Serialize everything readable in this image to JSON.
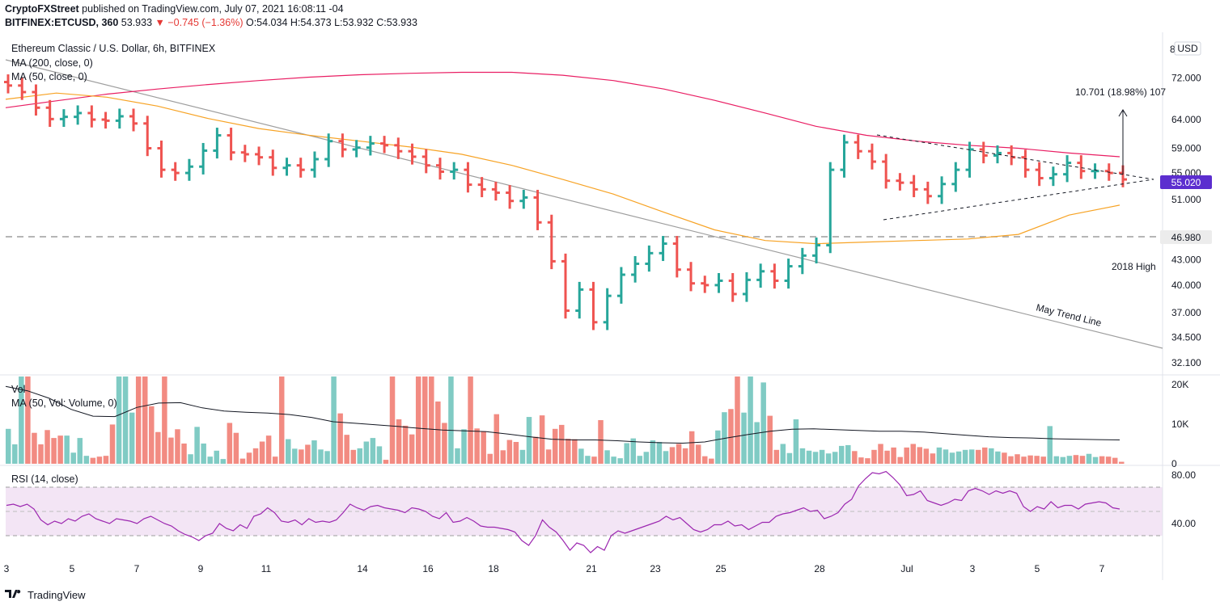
{
  "header": {
    "publisher": "CryptoFXStreet",
    "published_text": "published on TradingView.com, July 07, 2021 16:08:11 -04"
  },
  "quote": {
    "symbol": "BITFINEX:ETCUSD, 360",
    "last": "53.933",
    "change": "▼ −0.745 (−1.36%)",
    "ohlc": "O:54.034 H:54.373 L:53.932 C:53.933"
  },
  "legend": {
    "title": "Ethereum Classic / U.S. Dollar, 6h, BITFINEX",
    "ma200": "MA (200, close, 0)",
    "ma50": "MA (50, close, 0)",
    "vol": "Vol",
    "vol_ma": "MA (50, Vol: Volume, 0)",
    "rsi": "RSI (14, close)"
  },
  "price_axis": {
    "currency": "USD",
    "current_price_label": "55.020",
    "level_label": "46.980",
    "top_partial": "8"
  },
  "annotations": {
    "target": "10.701 (18.98%) 107",
    "level_name": "2018 High",
    "trend_line": "May Trend Line"
  },
  "footer": {
    "brand": "TradingView"
  },
  "colors": {
    "up": "#26a69a",
    "down": "#ef5350",
    "vol_up": "#80cbc4",
    "vol_down": "#f28b82",
    "ma200": "#e91e63",
    "ma50": "#f7a325",
    "rsi": "#9c27b0",
    "rsi_band": "#f3e5f5",
    "current_label_bg": "#5c2ecf"
  },
  "chart_data": [
    {
      "type": "ohlc",
      "title": "Ethereum Classic / U.S. Dollar, 6h, BITFINEX",
      "scale": "log",
      "y_ticks": [
        "72.000",
        "64.000",
        "59.000",
        "55.000",
        "51.000",
        "46.980",
        "43.000",
        "40.000",
        "37.000",
        "34.500",
        "32.100"
      ],
      "x_ticks": [
        "3",
        "5",
        "7",
        "9",
        "11",
        "14",
        "16",
        "18",
        "21",
        "23",
        "25",
        "28",
        "Jul",
        "3",
        "5",
        "7"
      ],
      "ylim": [
        31.0,
        82.0
      ],
      "series": [
        {
          "name": "Ethereum Classic / U.S. Dollar",
          "close_path": [
            70.5,
            69.2,
            66.2,
            64.1,
            64.5,
            65.2,
            64.0,
            63.8,
            64.6,
            63.3,
            59.0,
            55.5,
            55.0,
            56.0,
            58.6,
            61.2,
            58.3,
            58.0,
            57.5,
            55.8,
            56.2,
            55.5,
            57.2,
            60.2,
            58.8,
            59.1,
            59.8,
            59.5,
            58.5,
            57.6,
            56.2,
            55.2,
            55.5,
            53.2,
            52.5,
            52.0,
            50.8,
            51.3,
            47.8,
            42.8,
            37.2,
            39.5,
            36.0,
            38.8,
            41.2,
            42.5,
            43.8,
            45.0,
            41.8,
            40.2,
            40.0,
            40.5,
            39.0,
            40.6,
            41.6,
            40.5,
            42.2,
            43.5,
            44.8,
            55.5,
            60.0,
            58.5,
            56.8,
            53.8,
            53.5,
            52.5,
            51.5,
            53.3,
            55.5,
            58.8,
            57.8,
            58.2,
            57.5,
            55.5,
            54.2,
            54.8,
            56.6,
            55.3,
            55.3,
            55.0,
            54.0
          ]
        },
        {
          "name": "MA (200, close, 0)",
          "values": [
            66.2,
            67.5,
            68.8,
            69.8,
            70.7,
            71.5,
            72.2,
            72.7,
            73.0,
            73.2,
            73.2,
            72.6,
            71.5,
            69.8,
            67.6,
            65.2,
            62.8,
            61.2,
            60.2,
            59.5,
            59.0,
            58.2,
            57.6
          ]
        },
        {
          "name": "MA (50, close, 0)",
          "values": [
            67.8,
            69.0,
            68.2,
            66.5,
            64.2,
            62.4,
            61.2,
            60.2,
            59.2,
            58.0,
            56.2,
            54.0,
            51.8,
            49.2,
            46.8,
            45.4,
            45.0,
            45.2,
            45.4,
            45.6,
            46.2,
            48.8,
            50.2
          ]
        }
      ]
    },
    {
      "type": "bar",
      "title": "Vol",
      "y_ticks": [
        "20K",
        "10K",
        "0"
      ],
      "ylim": [
        0,
        22000
      ],
      "series": [
        {
          "name": "Vol",
          "values": [
            8800,
            4900,
            22000,
            22000,
            7800,
            4900,
            8500,
            6500,
            7100,
            7100,
            2800,
            6500,
            2000,
            1500,
            1800,
            2000,
            9900,
            22000,
            22000,
            12900,
            22000,
            22000,
            14500,
            8000,
            22000,
            6600,
            8700,
            5100,
            2400,
            9300,
            5100,
            1800,
            3300,
            1200,
            10300,
            7800,
            1300,
            2800,
            3900,
            5600,
            7100,
            1800,
            22000,
            6200,
            3800,
            3600,
            4800,
            5900,
            3600,
            3200,
            22000,
            12700,
            7300,
            3500,
            3900,
            5600,
            6500,
            4400,
            1000,
            22000,
            11200,
            9600,
            7400,
            22000,
            22000,
            22000,
            15700,
            10300,
            22000,
            3900,
            8700,
            22000,
            8900,
            8200,
            2500,
            12500,
            3400,
            6000,
            5500,
            3500,
            11800,
            6800,
            12200,
            3600,
            8800,
            9800,
            6300,
            6200,
            3800,
            2000,
            1800,
            11000,
            3400,
            1800,
            1400,
            5200,
            6400,
            2000,
            3000,
            5900,
            5500,
            3200,
            4200,
            5000,
            3900,
            8200,
            4800,
            1900,
            1300,
            8400,
            13000,
            13800,
            22000,
            12900,
            22000,
            10500,
            20500,
            12100,
            3500,
            5000,
            2700,
            11200,
            3900,
            3300,
            3000,
            3500,
            2600,
            3000,
            4500,
            4700,
            3200,
            1600,
            1400,
            3500,
            5000,
            3300,
            4100,
            1700,
            4100,
            5000,
            4200,
            3800,
            2600,
            4100,
            3600,
            2800,
            3100,
            3500,
            3600,
            3500,
            4100,
            3900,
            3100,
            2800,
            1900,
            2400,
            1800,
            2100,
            2000,
            1800,
            9500,
            1900,
            1700,
            2000,
            2200,
            2000,
            2500,
            1700,
            1900,
            1800,
            1500,
            500
          ]
        },
        {
          "name": "MA (50, Vol: Volume, 0)",
          "values": [
            19500,
            18400,
            16500,
            13700,
            12000,
            11900,
            14200,
            15300,
            15400,
            14100,
            13300,
            13000,
            12800,
            12400,
            11700,
            10600,
            10200,
            9800,
            9400,
            8900,
            8500,
            8300,
            8100,
            7500,
            6800,
            6200,
            6000,
            6000,
            5800,
            5500,
            5300,
            5200,
            5500,
            6500,
            7400,
            8200,
            8700,
            8800,
            8600,
            8400,
            8200,
            8200,
            8000,
            7600,
            7200,
            6800,
            6600,
            6500,
            6300,
            6200,
            6100,
            6000
          ]
        }
      ]
    },
    {
      "type": "line",
      "title": "RSI (14, close)",
      "y_ticks": [
        "80.00",
        "40.00"
      ],
      "ylim": [
        15,
        90
      ],
      "series": [
        {
          "name": "RSI (14, close)",
          "values": [
            55,
            56,
            54,
            56,
            52,
            43,
            39,
            42,
            40,
            44,
            42,
            46,
            48,
            44,
            42,
            40,
            44,
            43,
            42,
            40,
            44,
            46,
            43,
            40,
            38,
            34,
            31,
            29,
            26,
            30,
            32,
            40,
            36,
            34,
            39,
            36,
            46,
            48,
            53,
            49,
            42,
            41,
            43,
            39,
            44,
            41,
            42,
            41,
            43,
            49,
            56,
            53,
            51,
            54,
            55,
            53,
            52,
            51,
            49,
            53,
            52,
            50,
            46,
            44,
            49,
            41,
            42,
            45,
            42,
            38,
            37,
            37,
            36,
            35,
            33,
            26,
            22,
            30,
            43,
            37,
            33,
            26,
            18,
            24,
            22,
            16,
            21,
            18,
            30,
            34,
            32,
            34,
            36,
            38,
            40,
            42,
            46,
            43,
            45,
            40,
            35,
            33,
            35,
            39,
            39,
            42,
            38,
            39,
            35,
            38,
            41,
            41,
            46,
            48,
            49,
            51,
            53,
            50,
            51,
            44,
            46,
            49,
            56,
            60,
            71,
            77,
            82,
            81,
            83,
            78,
            72,
            63,
            64,
            67,
            59,
            57,
            55,
            57,
            60,
            59,
            67,
            69,
            67,
            64,
            67,
            65,
            67,
            65,
            54,
            50,
            54,
            52,
            58,
            53,
            55,
            55,
            52,
            56,
            57,
            58,
            57,
            53,
            52
          ]
        }
      ]
    }
  ]
}
